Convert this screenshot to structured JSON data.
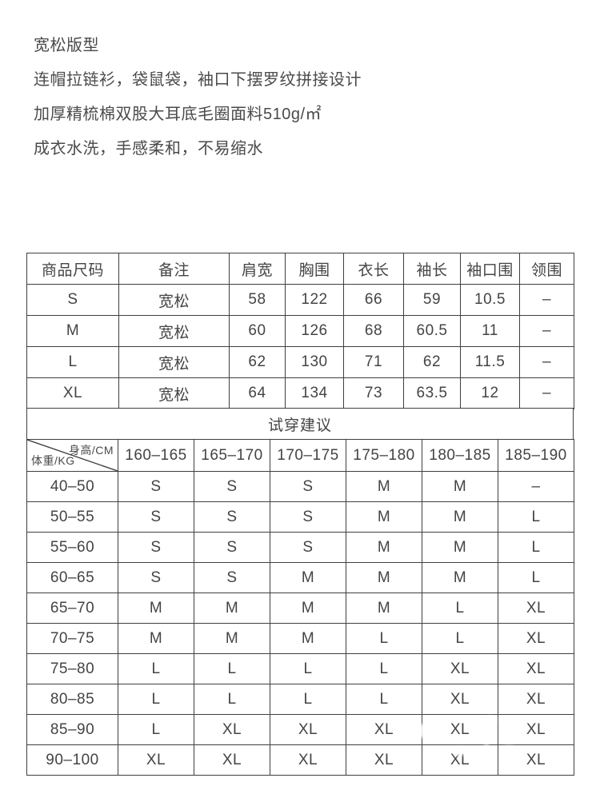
{
  "description": {
    "title": "宽松版型",
    "lines": [
      "连帽拉链衫，袋鼠袋，袖口下摆罗纹拼接设计",
      "加厚精梳棉双股大耳底毛圈面料510g/㎡",
      "成衣水洗，手感柔和，不易缩水"
    ]
  },
  "size_table": {
    "headers": [
      "商品尺码",
      "备注",
      "肩宽",
      "胸围",
      "衣长",
      "袖长",
      "袖口围",
      "领围"
    ],
    "rows": [
      [
        "S",
        "宽松",
        "58",
        "122",
        "66",
        "59",
        "10.5",
        "–"
      ],
      [
        "M",
        "宽松",
        "60",
        "126",
        "68",
        "60.5",
        "11",
        "–"
      ],
      [
        "L",
        "宽松",
        "62",
        "130",
        "71",
        "62",
        "11.5",
        "–"
      ],
      [
        "XL",
        "宽松",
        "64",
        "134",
        "73",
        "63.5",
        "12",
        "–"
      ]
    ]
  },
  "fit_section": {
    "title": "试穿建议",
    "corner": {
      "top_right": "身高/CM",
      "bottom_left": "体重/KG"
    },
    "height_headers": [
      "160–165",
      "165–170",
      "170–175",
      "175–180",
      "180–185",
      "185–190"
    ],
    "rows": [
      {
        "weight": "40–50",
        "sizes": [
          "S",
          "S",
          "S",
          "M",
          "M",
          "–"
        ]
      },
      {
        "weight": "50–55",
        "sizes": [
          "S",
          "S",
          "S",
          "M",
          "M",
          "L"
        ]
      },
      {
        "weight": "55–60",
        "sizes": [
          "S",
          "S",
          "S",
          "M",
          "M",
          "L"
        ]
      },
      {
        "weight": "60–65",
        "sizes": [
          "S",
          "S",
          "M",
          "M",
          "M",
          "L"
        ]
      },
      {
        "weight": "65–70",
        "sizes": [
          "M",
          "M",
          "M",
          "M",
          "L",
          "XL"
        ]
      },
      {
        "weight": "70–75",
        "sizes": [
          "M",
          "M",
          "M",
          "L",
          "L",
          "XL"
        ]
      },
      {
        "weight": "75–80",
        "sizes": [
          "L",
          "L",
          "L",
          "L",
          "XL",
          "XL"
        ]
      },
      {
        "weight": "80–85",
        "sizes": [
          "L",
          "L",
          "L",
          "L",
          "XL",
          "XL"
        ]
      },
      {
        "weight": "85–90",
        "sizes": [
          "L",
          "XL",
          "XL",
          "XL",
          "XL",
          "XL"
        ]
      },
      {
        "weight": "90–100",
        "sizes": [
          "XL",
          "XL",
          "XL",
          "XL",
          "XL",
          "XL"
        ]
      }
    ]
  },
  "colors": {
    "background": "#ffffff",
    "text": "#4a4a4a",
    "table_text": "#444444",
    "border": "#3f3f3f"
  }
}
